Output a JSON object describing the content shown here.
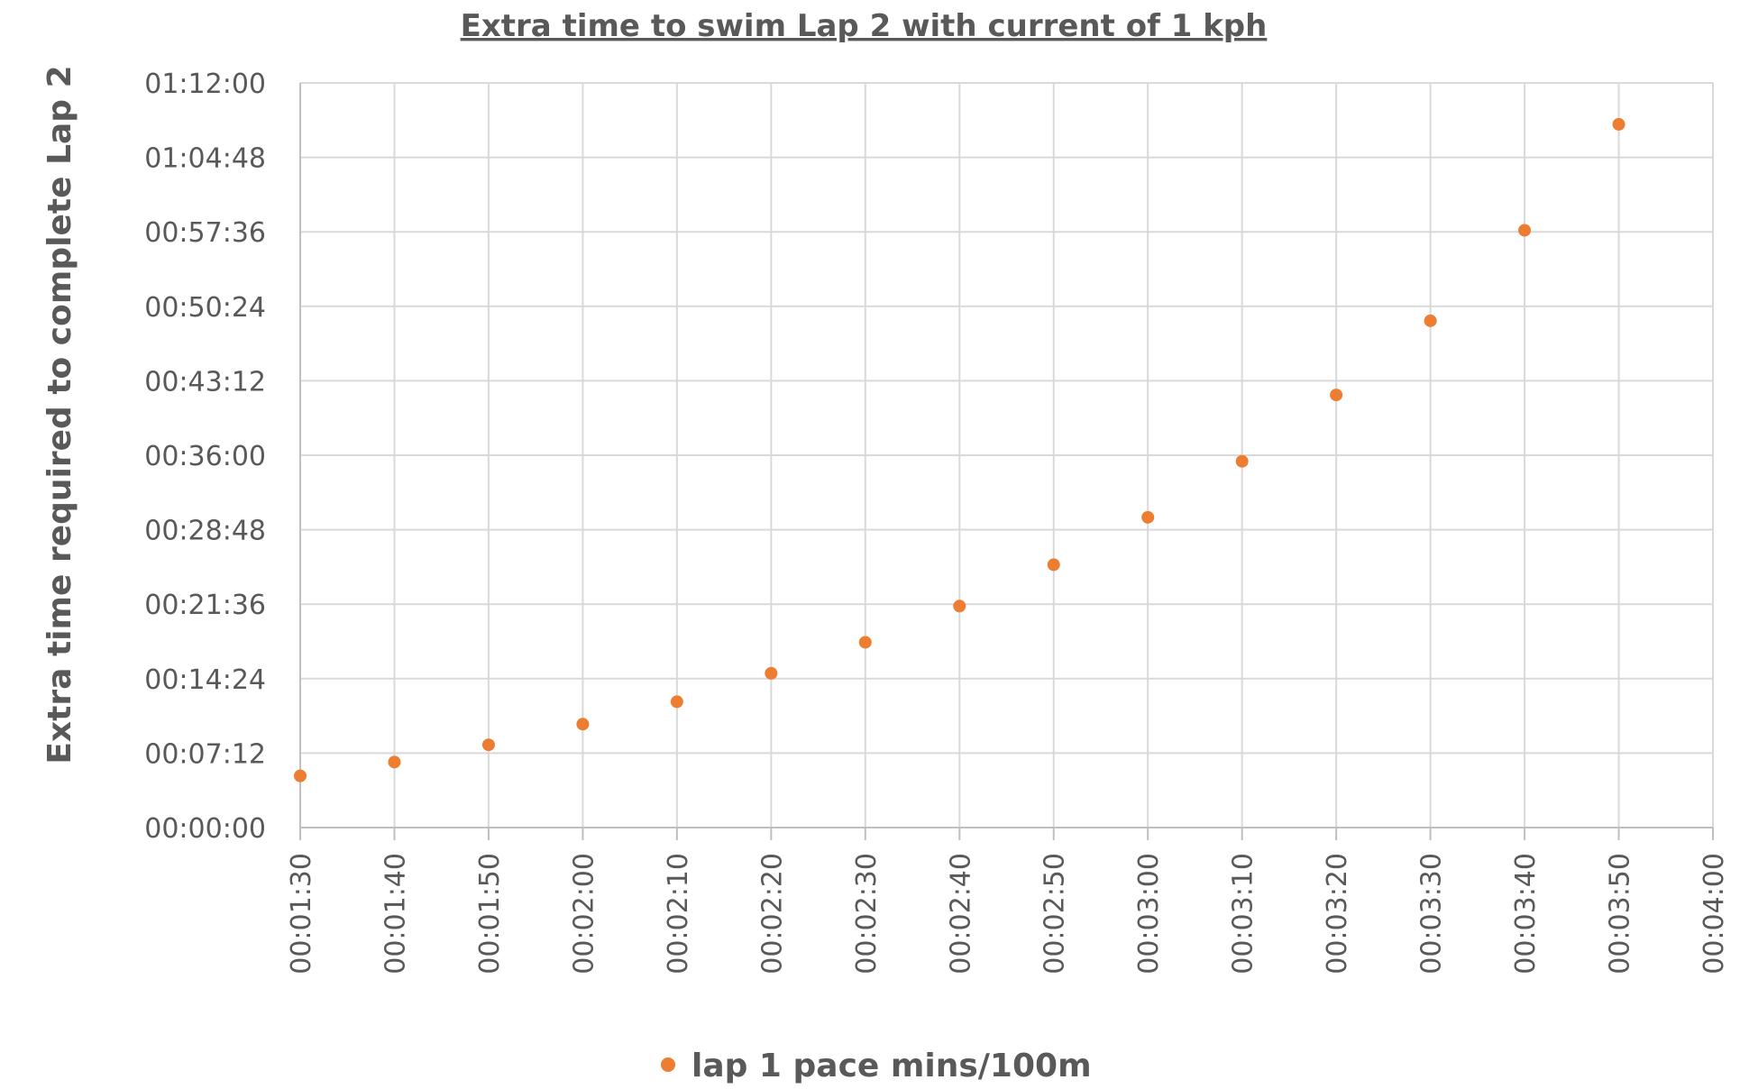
{
  "chart_data": {
    "type": "scatter",
    "title": "Extra time to swim Lap 2 with current of 1 kph",
    "xlabel": "",
    "ylabel": "Extra time required to complete Lap 2",
    "x": [
      "00:01:30",
      "00:01:40",
      "00:01:50",
      "00:02:00",
      "00:02:10",
      "00:02:20",
      "00:02:30",
      "00:02:40",
      "00:02:50",
      "00:03:00",
      "00:03:10",
      "00:03:20",
      "00:03:30",
      "00:03:40",
      "00:03:50"
    ],
    "x_ticks": [
      "00:01:30",
      "00:01:40",
      "00:01:50",
      "00:02:00",
      "00:02:10",
      "00:02:20",
      "00:02:30",
      "00:02:40",
      "00:02:50",
      "00:03:00",
      "00:03:10",
      "00:03:20",
      "00:03:30",
      "00:03:40",
      "00:03:50",
      "00:04:00"
    ],
    "xlim": [
      "00:01:30",
      "00:04:00"
    ],
    "y_ticks": [
      "00:00:00",
      "00:07:12",
      "00:14:24",
      "00:21:36",
      "00:28:48",
      "00:36:00",
      "00:43:12",
      "00:50:24",
      "00:57:36",
      "01:04:48",
      "01:12:00"
    ],
    "ylim": [
      "00:00:00",
      "01:12:00"
    ],
    "grid": true,
    "legend_position": "bottom",
    "series": [
      {
        "name": "lap 1 pace mins/100m",
        "color": "#ED7D31",
        "values": [
          "00:05:00",
          "00:06:20",
          "00:08:00",
          "00:10:00",
          "00:12:10",
          "00:14:55",
          "00:17:55",
          "00:21:25",
          "00:25:25",
          "00:30:00",
          "00:35:25",
          "00:41:50",
          "00:49:00",
          "00:57:45",
          "01:08:00"
        ]
      }
    ]
  }
}
